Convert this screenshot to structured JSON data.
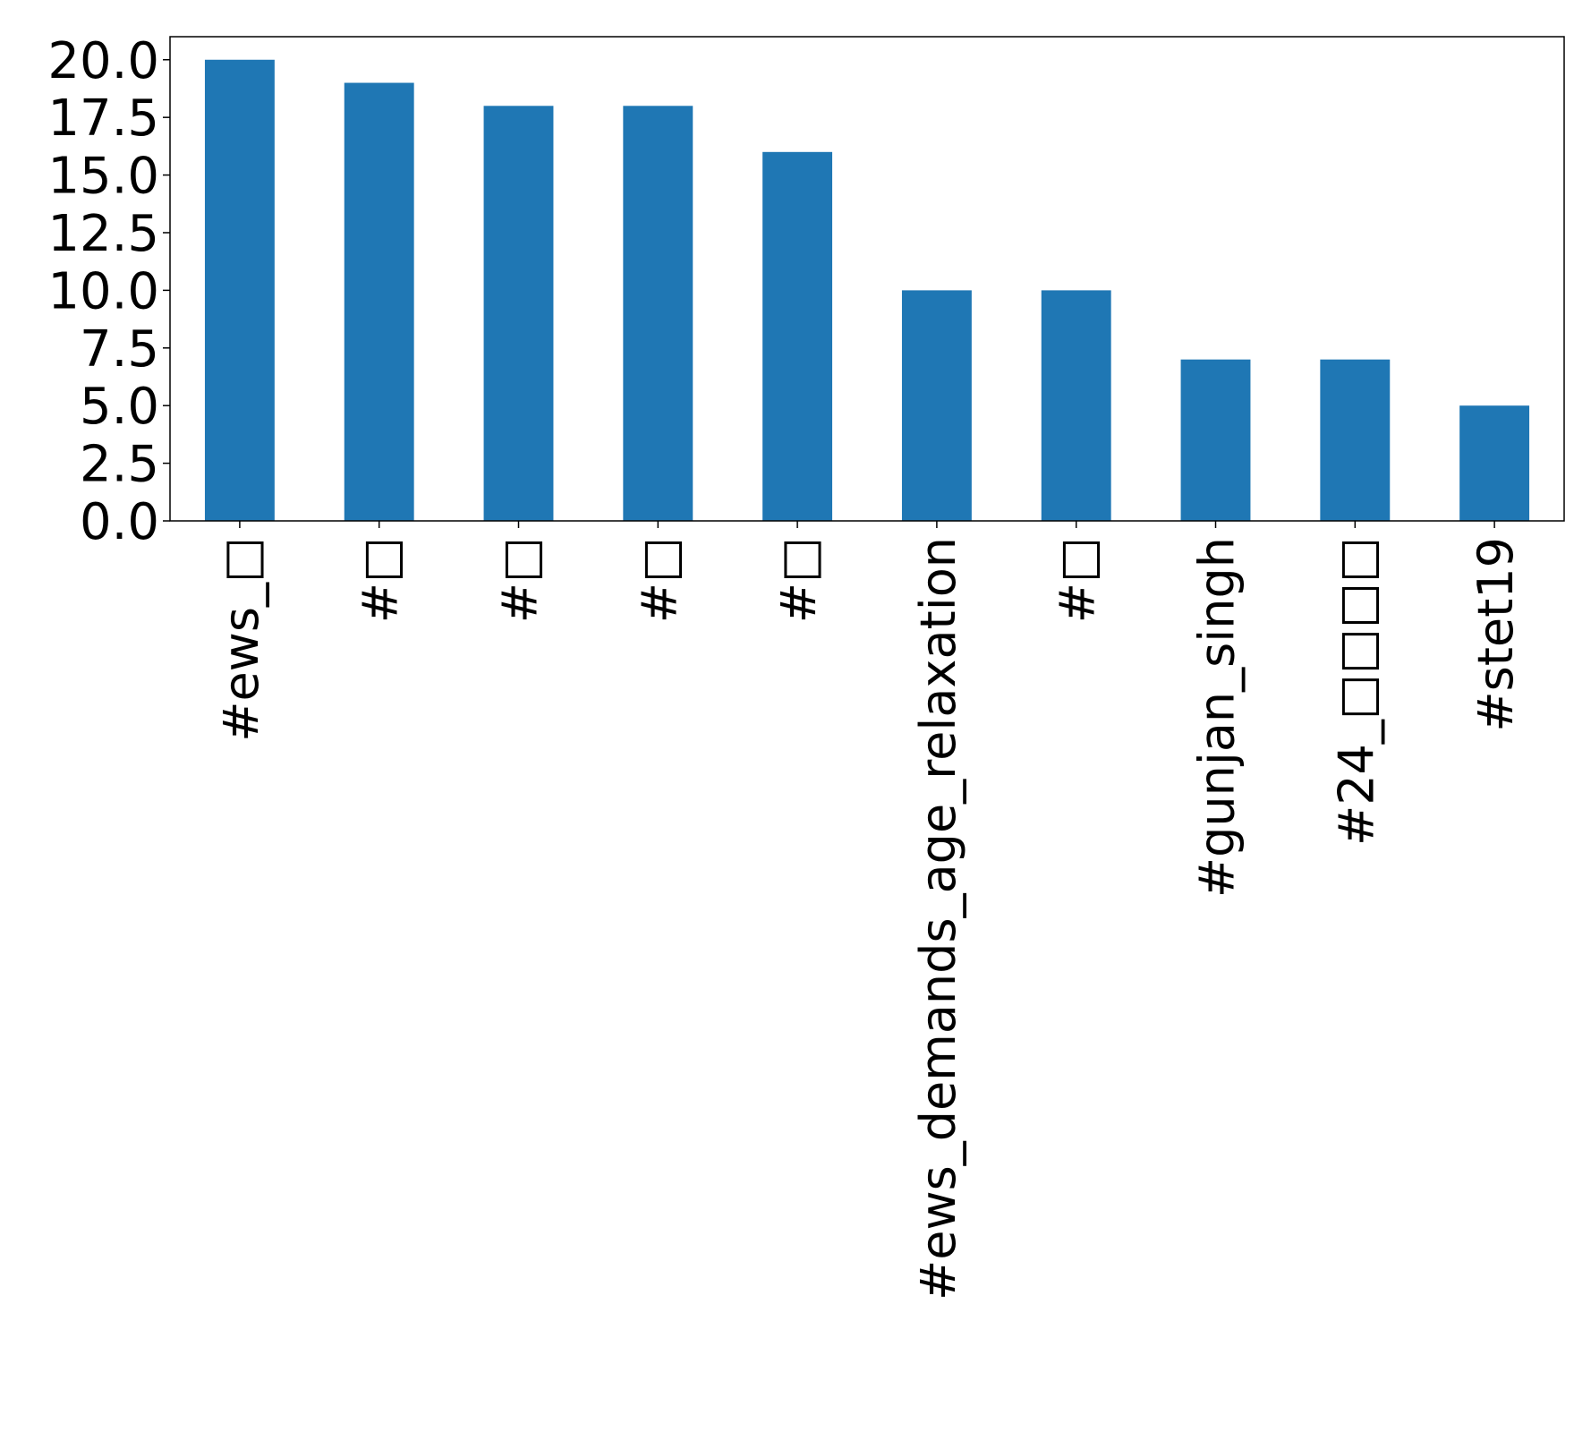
{
  "chart_data": {
    "type": "bar",
    "title": "",
    "xlabel": "",
    "ylabel": "",
    "categories": [
      "#ews_□",
      "#□",
      "#□",
      "#□",
      "#□",
      "#ews_demands_age_relaxation",
      "#□",
      "#gunjan_singh",
      "#24_□□□□",
      "#stet19"
    ],
    "values": [
      20,
      19,
      18,
      18,
      16,
      10,
      10,
      7,
      7,
      5
    ],
    "ylim": [
      0,
      21
    ],
    "yticks": [
      "0.0",
      "2.5",
      "5.0",
      "7.5",
      "10.0",
      "12.5",
      "15.0",
      "17.5",
      "20.0"
    ],
    "bar_color": "#1f77b4",
    "grid": false,
    "legend": "none"
  }
}
